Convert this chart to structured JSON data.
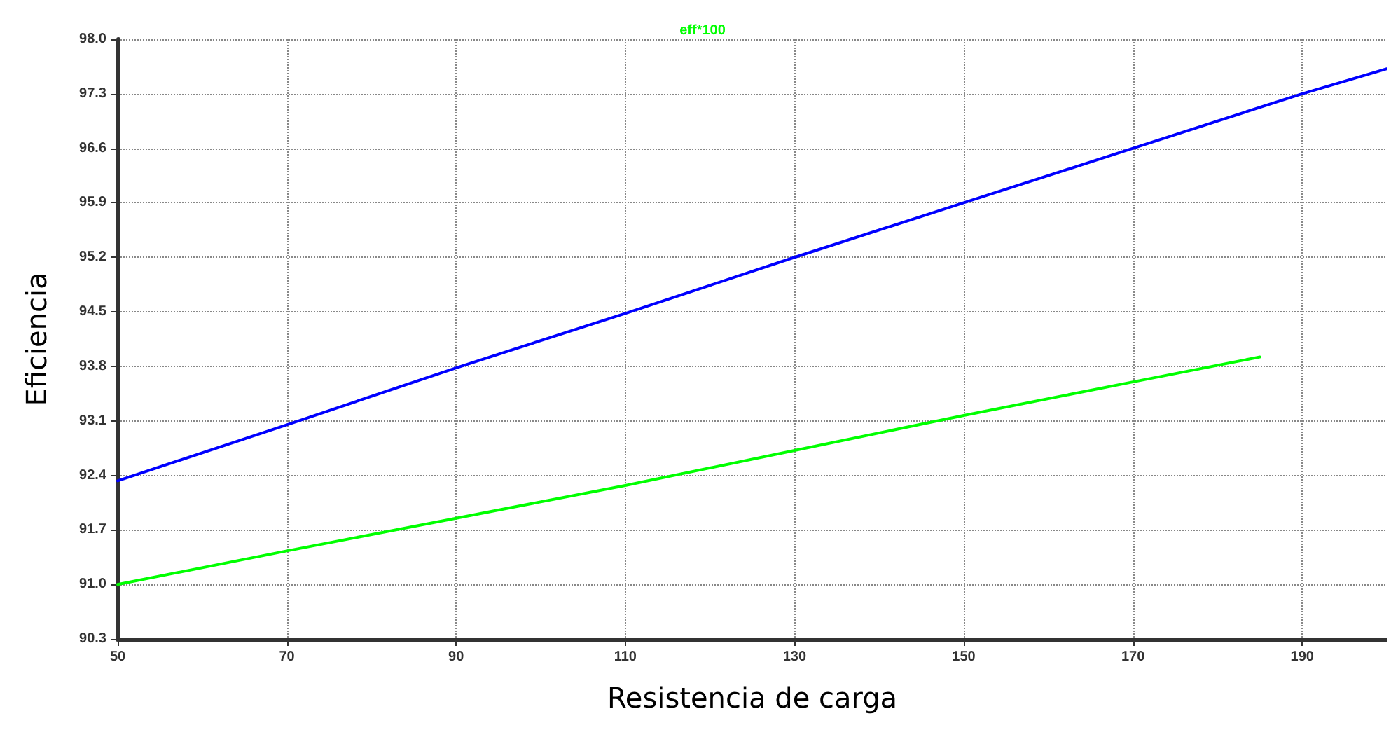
{
  "chart_data": {
    "type": "line",
    "xlabel": "Resistencia de carga",
    "ylabel": "Eficiencia",
    "xlim": [
      50,
      200
    ],
    "xticks": [
      50,
      70,
      90,
      110,
      130,
      150,
      170,
      190
    ],
    "ylim": [
      90.3,
      98.0
    ],
    "yticks": [
      {
        "value": 90.3,
        "label": "90.3"
      },
      {
        "value": 91.0,
        "label": "91.0"
      },
      {
        "value": 91.7,
        "label": "91.7"
      },
      {
        "value": 92.4,
        "label": "92.4"
      },
      {
        "value": 93.1,
        "label": "93.1"
      },
      {
        "value": 93.8,
        "label": "93.8"
      },
      {
        "value": 94.5,
        "label": "94.5"
      },
      {
        "value": 95.2,
        "label": "95.2"
      },
      {
        "value": 95.9,
        "label": "95.9"
      },
      {
        "value": 96.6,
        "label": "96.6"
      },
      {
        "value": 97.3,
        "label": "97.3"
      },
      {
        "value": 98.0,
        "label": "98.0"
      }
    ],
    "grid": true,
    "legend": "top",
    "marker": "none",
    "line_style": "solid",
    "series": [
      {
        "color": "#0000ff",
        "x": [
          50,
          70,
          90,
          110,
          130,
          150,
          170,
          190,
          200
        ],
        "values": [
          92.33,
          93.05,
          93.78,
          94.48,
          95.2,
          95.9,
          96.6,
          97.3,
          97.62
        ]
      },
      {
        "name": "eff*100",
        "color": "#00ff00",
        "x": [
          50,
          70,
          90,
          110,
          130,
          150,
          170,
          185
        ],
        "values": [
          91.0,
          91.43,
          91.85,
          92.27,
          92.72,
          93.17,
          93.6,
          93.92
        ]
      }
    ]
  }
}
